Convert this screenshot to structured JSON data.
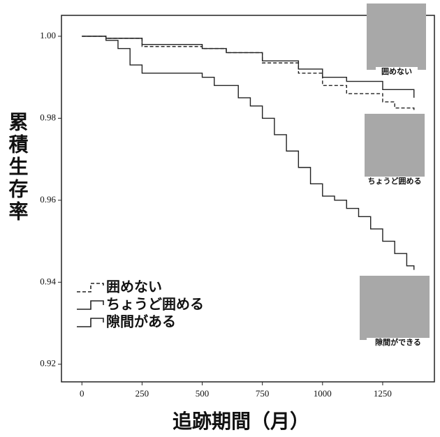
{
  "chart_data": {
    "type": "step",
    "y_label": "累積生存率",
    "x_label": "追跡期間（月）",
    "xlim": [
      -85,
      1465
    ],
    "xticks": [
      0,
      250,
      500,
      750,
      1000,
      1250
    ],
    "ylim": [
      0.9157,
      1.0051
    ],
    "yticks": [
      {
        "value": 0.92,
        "label": "0.92"
      },
      {
        "value": 0.94,
        "label": "0.94"
      },
      {
        "value": 0.96,
        "label": "0.96"
      },
      {
        "value": 0.98,
        "label": "0.98"
      },
      {
        "value": 1.0,
        "label": "1.00"
      }
    ],
    "legend": "lower left",
    "series": [
      {
        "name": "囲めない",
        "color": "#222222",
        "style": "dashed",
        "x": [
          0,
          100,
          250,
          500,
          600,
          750,
          900,
          1000,
          1100,
          1250,
          1300,
          1380
        ],
        "values": [
          1.0,
          0.9995,
          0.9975,
          0.997,
          0.996,
          0.9935,
          0.991,
          0.988,
          0.986,
          0.984,
          0.9825,
          0.982
        ]
      },
      {
        "name": "ちょうど囲める",
        "color": "#222222",
        "style": "solid",
        "x": [
          0,
          100,
          250,
          500,
          600,
          750,
          900,
          1000,
          1100,
          1250,
          1380
        ],
        "values": [
          1.0,
          0.9995,
          0.998,
          0.997,
          0.996,
          0.994,
          0.992,
          0.99,
          0.989,
          0.987,
          0.985
        ]
      },
      {
        "name": "隙間がある",
        "color": "#222222",
        "style": "solid",
        "x": [
          0,
          100,
          150,
          200,
          250,
          500,
          550,
          650,
          700,
          750,
          800,
          850,
          900,
          950,
          1000,
          1050,
          1100,
          1150,
          1200,
          1250,
          1300,
          1350,
          1380
        ],
        "values": [
          1.0,
          0.999,
          0.997,
          0.993,
          0.991,
          0.99,
          0.988,
          0.985,
          0.983,
          0.98,
          0.976,
          0.972,
          0.968,
          0.964,
          0.961,
          0.96,
          0.958,
          0.956,
          0.953,
          0.95,
          0.947,
          0.944,
          0.943
        ]
      }
    ],
    "annotations": [
      "囲めない",
      "ちょうど囲める",
      "隙間ができる"
    ]
  }
}
